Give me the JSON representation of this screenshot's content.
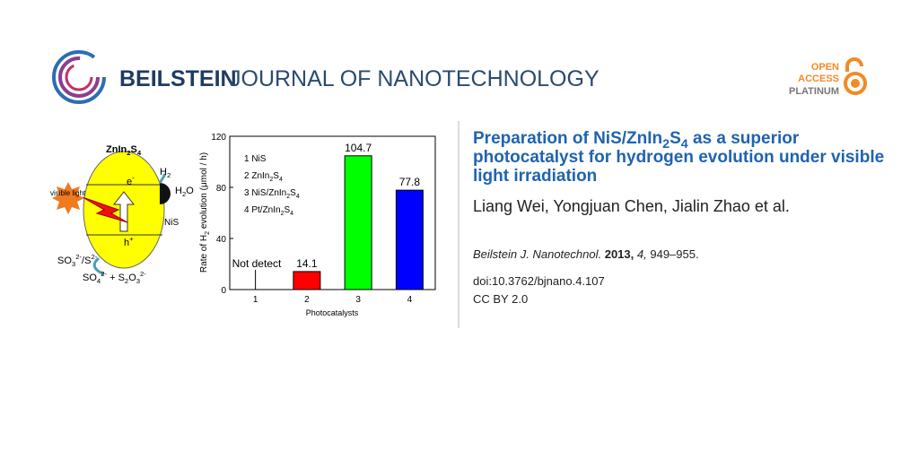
{
  "header": {
    "journal_bold": "BEILSTEIN",
    "journal_light": "JOURNAL OF NANOTECHNOLOGY"
  },
  "badge": {
    "line1": "OPEN",
    "line2": "ACCESS",
    "line3": "PLATINUM"
  },
  "article": {
    "title": [
      "Preparation of NiS/ZnIn",
      "2",
      "S",
      "4",
      " as a superior photocatalyst for hydrogen evolution under visible light irradiation"
    ],
    "authors": "Liang Wei, Yongjuan Chen, Jialin Zhao et al.",
    "journal": "Beilstein J. Nanotechnol.",
    "year": "2013,",
    "volume": "4,",
    "pages": "949–955.",
    "doi": "doi:10.3762/bjnano.4.107",
    "license": "CC BY 2.0"
  },
  "diagram": {
    "catalyst": [
      "ZnIn",
      "2",
      "S",
      "4"
    ],
    "electron": [
      "e",
      "-"
    ],
    "hole": [
      "h",
      "+"
    ],
    "h2": [
      "H",
      "2"
    ],
    "h2o": [
      "H",
      "2",
      "O"
    ],
    "nis": "NiS",
    "light": "visible light",
    "donor": [
      "SO",
      "3",
      "2-",
      "/S",
      "2-"
    ],
    "products": [
      "SO",
      "4",
      "2-",
      " + S",
      "2",
      "O",
      "3",
      "2-"
    ]
  },
  "chart_data": {
    "type": "bar",
    "categories": [
      "1",
      "2",
      "3",
      "4"
    ],
    "values": [
      null,
      14.1,
      104.7,
      77.8
    ],
    "colors": [
      null,
      "#ff0000",
      "#00ff00",
      "#0000ff"
    ],
    "annotation": "Not detect",
    "legend": [
      [
        "1 NiS"
      ],
      [
        "2 ZnIn",
        "2",
        "S",
        "4"
      ],
      [
        "3 NiS/ZnIn",
        "2",
        "S",
        "4"
      ],
      [
        "4 Pt/ZnIn",
        "2",
        "S",
        "4"
      ]
    ],
    "y_label": [
      "Rate of H",
      "2",
      " evolution (μmol / h)"
    ],
    "x_label": "Photocatalysts",
    "ylim": [
      0,
      120
    ],
    "yticks": [
      0,
      40,
      80,
      120
    ]
  }
}
